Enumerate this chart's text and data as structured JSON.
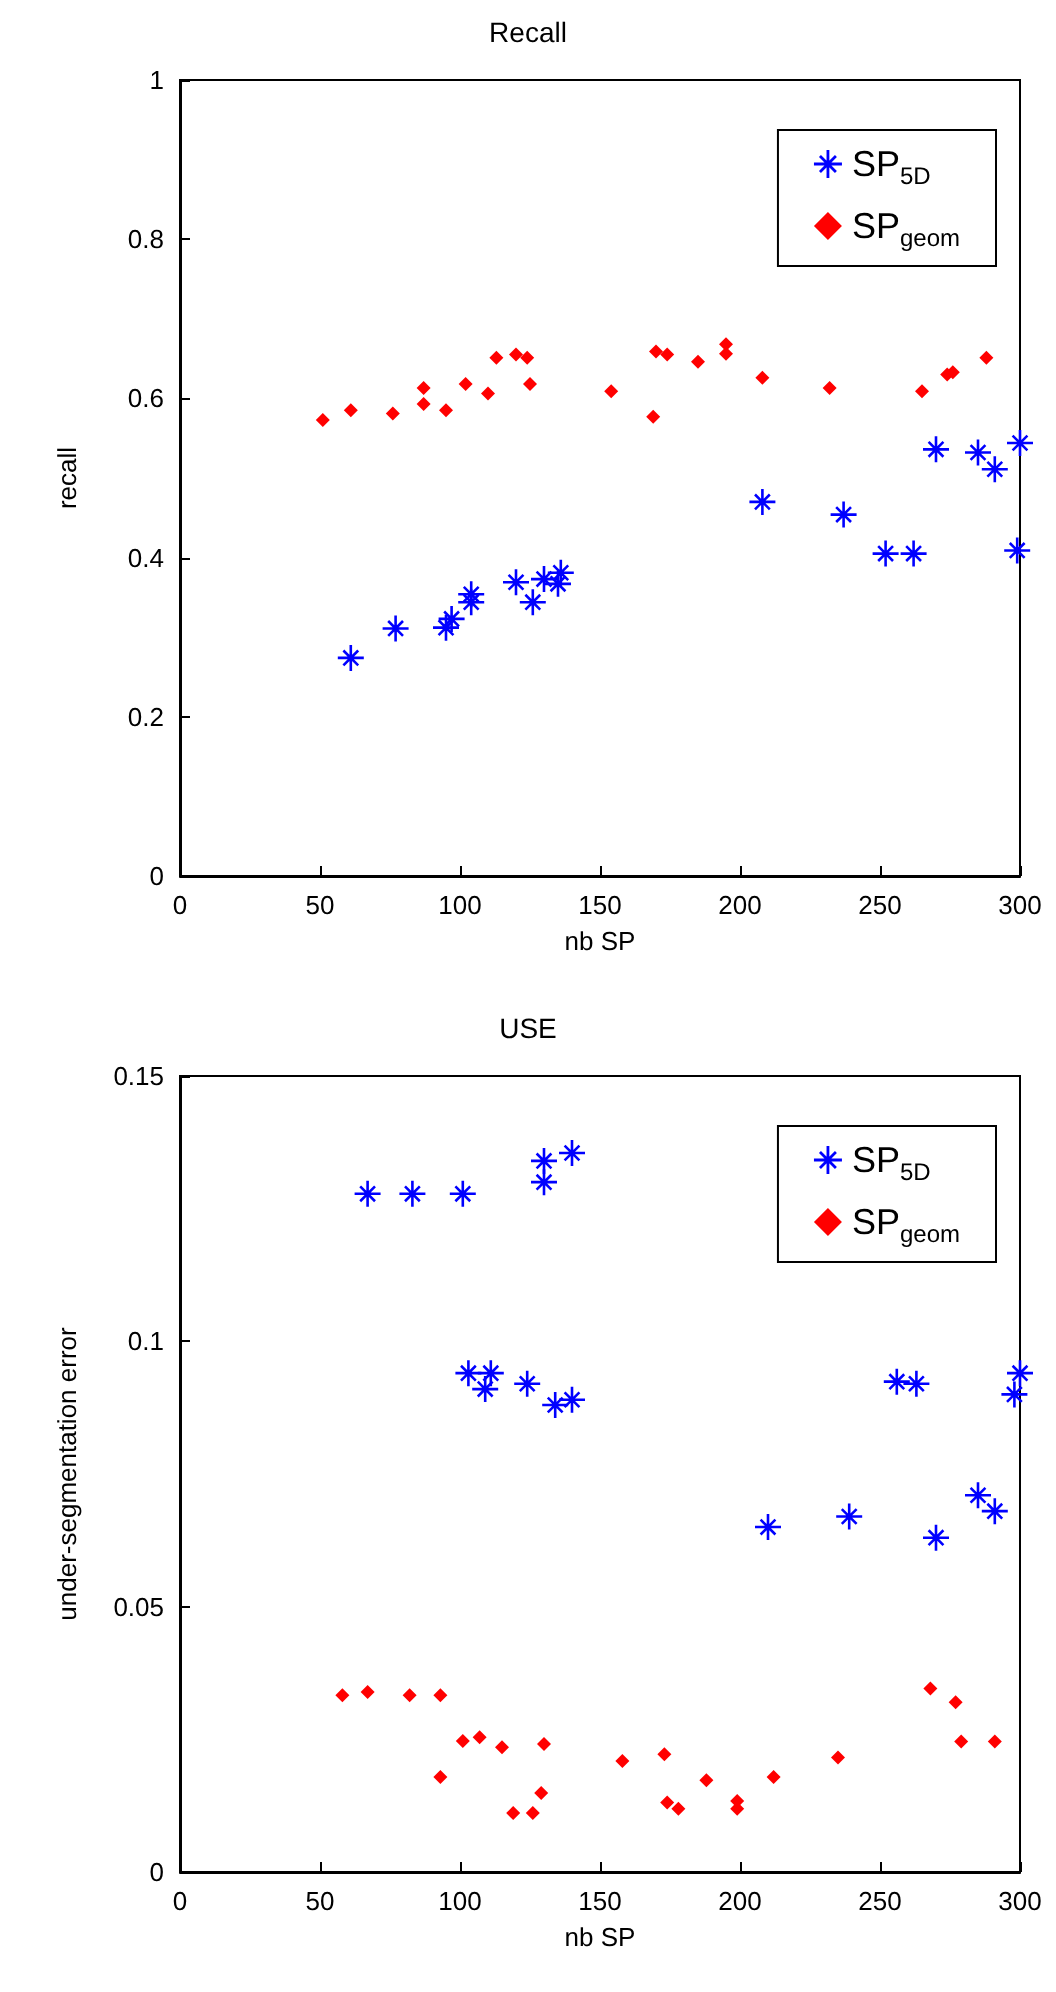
{
  "chart_data": [
    {
      "type": "scatter",
      "title": "Recall",
      "xlabel": "nb SP",
      "ylabel": "recall",
      "xlim": [
        0,
        300
      ],
      "xticks": [
        0,
        50,
        100,
        150,
        200,
        250,
        300
      ],
      "ylim": [
        0,
        1
      ],
      "yticks": [
        0,
        0.2,
        0.4,
        0.6,
        0.8,
        1
      ],
      "grid": false,
      "legend": "top right",
      "series": [
        {
          "name": "SP$_{5D}$",
          "color": "#0000ff",
          "marker": "star",
          "x": [
            61,
            77,
            95,
            97,
            104,
            104,
            120,
            126,
            130,
            136,
            135,
            208,
            237,
            252,
            262,
            270,
            285,
            291,
            300,
            299
          ],
          "values": [
            0.274,
            0.311,
            0.312,
            0.323,
            0.354,
            0.344,
            0.369,
            0.344,
            0.373,
            0.381,
            0.367,
            0.47,
            0.454,
            0.405,
            0.405,
            0.536,
            0.532,
            0.511,
            0.544,
            0.409
          ]
        },
        {
          "name": "SP$_{geom}$",
          "color": "#ff0000",
          "marker": "diamond",
          "x": [
            51,
            61,
            76,
            87,
            87,
            95,
            102,
            110,
            113,
            120,
            124,
            125,
            154,
            170,
            174,
            169,
            185,
            195,
            195,
            208,
            232,
            265,
            274,
            276,
            288
          ],
          "values": [
            0.573,
            0.585,
            0.581,
            0.613,
            0.593,
            0.585,
            0.618,
            0.606,
            0.651,
            0.655,
            0.651,
            0.618,
            0.609,
            0.659,
            0.655,
            0.577,
            0.646,
            0.668,
            0.656,
            0.626,
            0.613,
            0.609,
            0.63,
            0.633,
            0.651
          ]
        }
      ]
    },
    {
      "type": "scatter",
      "title": "USE",
      "xlabel": "nb SP",
      "ylabel": "under-segmentation error",
      "xlim": [
        0,
        300
      ],
      "xticks": [
        0,
        50,
        100,
        150,
        200,
        250,
        300
      ],
      "ylim": [
        0,
        0.15
      ],
      "yticks": [
        0,
        0.05,
        0.1,
        0.15
      ],
      "grid": false,
      "legend": "top right",
      "series": [
        {
          "name": "SP$_{5D}$",
          "color": "#0000ff",
          "marker": "star",
          "x": [
            67,
            83,
            101,
            130,
            130,
            140,
            103,
            111,
            109,
            124,
            134,
            140,
            256,
            263,
            300,
            298,
            210,
            239,
            270,
            285,
            291
          ],
          "values": [
            0.1278,
            0.1278,
            0.1278,
            0.134,
            0.13,
            0.1355,
            0.094,
            0.094,
            0.091,
            0.092,
            0.088,
            0.089,
            0.0924,
            0.092,
            0.094,
            0.09,
            0.065,
            0.067,
            0.063,
            0.071,
            0.068
          ]
        },
        {
          "name": "SP$_{geom}$",
          "color": "#ff0000",
          "marker": "diamond",
          "x": [
            58,
            67,
            82,
            93,
            93,
            101,
            107,
            115,
            119,
            126,
            129,
            130,
            158,
            173,
            174,
            178,
            188,
            199,
            199,
            212,
            235,
            268,
            277,
            279,
            291
          ],
          "values": [
            0.0333,
            0.0339,
            0.0333,
            0.0333,
            0.0179,
            0.0247,
            0.0254,
            0.0235,
            0.0111,
            0.0111,
            0.0149,
            0.0241,
            0.0209,
            0.0222,
            0.0131,
            0.0119,
            0.0173,
            0.0134,
            0.0119,
            0.0179,
            0.0216,
            0.0346,
            0.032,
            0.0246,
            0.0246
          ]
        }
      ]
    }
  ]
}
